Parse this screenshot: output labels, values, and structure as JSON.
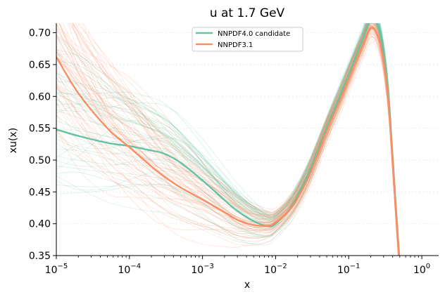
{
  "chart_data": {
    "type": "line",
    "title": "u at 1.7 GeV",
    "xlabel": "x",
    "ylabel": "xu(x)",
    "xscale": "log",
    "xlim": [
      1e-05,
      1.7
    ],
    "ylim": [
      0.35,
      0.715
    ],
    "grid": "faint dotted horizontal",
    "legend_position": "top-center",
    "x_ticks": [
      {
        "base": "10",
        "exp": "−5",
        "value": 1e-05
      },
      {
        "base": "10",
        "exp": "−4",
        "value": 0.0001
      },
      {
        "base": "10",
        "exp": "−3",
        "value": 0.001
      },
      {
        "base": "10",
        "exp": "−2",
        "value": 0.01
      },
      {
        "base": "10",
        "exp": "−1",
        "value": 0.1
      },
      {
        "base": "10",
        "exp": "0",
        "value": 1
      }
    ],
    "y_ticks": [
      "0.35",
      "0.40",
      "0.45",
      "0.50",
      "0.55",
      "0.60",
      "0.65",
      "0.70"
    ],
    "series": [
      {
        "name": "NNPDF4.0 candidate",
        "color": "#66c2a5",
        "x": [
          1e-05,
          2e-05,
          5e-05,
          0.0001,
          0.0002,
          0.0003,
          0.0005,
          0.001,
          0.002,
          0.003,
          0.005,
          0.008,
          0.01,
          0.015,
          0.02,
          0.03,
          0.05,
          0.08,
          0.1,
          0.15,
          0.2,
          0.25,
          0.3,
          0.35,
          0.4,
          0.45,
          0.5
        ],
        "y": [
          0.548,
          0.538,
          0.527,
          0.522,
          0.515,
          0.51,
          0.496,
          0.468,
          0.437,
          0.42,
          0.404,
          0.396,
          0.4,
          0.421,
          0.444,
          0.486,
          0.55,
          0.608,
          0.635,
          0.685,
          0.72,
          0.71,
          0.667,
          0.6,
          0.5,
          0.41,
          0.33
        ]
      },
      {
        "name": "NNPDF3.1",
        "color": "#fc8d62",
        "x": [
          1e-05,
          2e-05,
          5e-05,
          0.0001,
          0.0002,
          0.0003,
          0.0005,
          0.001,
          0.002,
          0.003,
          0.005,
          0.008,
          0.01,
          0.015,
          0.02,
          0.03,
          0.05,
          0.08,
          0.1,
          0.15,
          0.2,
          0.25,
          0.3,
          0.35,
          0.4,
          0.45,
          0.5
        ],
        "y": [
          0.662,
          0.605,
          0.55,
          0.52,
          0.49,
          0.474,
          0.457,
          0.438,
          0.418,
          0.406,
          0.398,
          0.397,
          0.402,
          0.42,
          0.44,
          0.48,
          0.545,
          0.6,
          0.628,
          0.676,
          0.707,
          0.695,
          0.655,
          0.59,
          0.495,
          0.405,
          0.33
        ]
      }
    ]
  }
}
